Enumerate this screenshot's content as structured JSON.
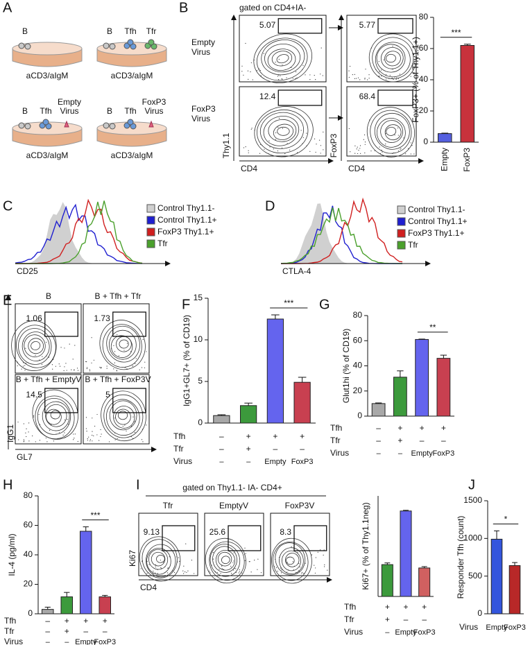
{
  "panel_letters": [
    "A",
    "B",
    "C",
    "D",
    "E",
    "F",
    "G",
    "H",
    "I",
    "J"
  ],
  "schematic": {
    "dishes": [
      {
        "label": "aCD3/aIgM",
        "cells": [
          [
            "B"
          ]
        ]
      },
      {
        "label": "aCD3/aIgM",
        "cells": [
          [
            "B"
          ],
          [
            "Tfh"
          ],
          [
            "Tfr"
          ]
        ]
      },
      {
        "label": "aCD3/aIgM",
        "cells": [
          [
            "B"
          ],
          [
            "Tfh"
          ],
          [
            "Empty",
            "Virus"
          ]
        ]
      },
      {
        "label": "aCD3/aIgM",
        "cells": [
          [
            "B"
          ],
          [
            "Tfh"
          ],
          [
            "FoxP3",
            "Virus"
          ]
        ]
      }
    ]
  },
  "flow_b": {
    "title": "gated on CD4+IA-",
    "rows": [
      {
        "label": [
          "Empty",
          "Virus"
        ],
        "gates": [
          5.07,
          5.77
        ]
      },
      {
        "label": [
          "FoxP3",
          "Virus"
        ],
        "gates": [
          12.4,
          68.4
        ]
      }
    ],
    "x_labels": [
      "CD4",
      "CD4"
    ],
    "y_labels": [
      "Thy1.1",
      "FoxP3"
    ]
  },
  "hist_c": {
    "x_label": "CD25",
    "legend": [
      {
        "name": "Control Thy1.1-",
        "color": "#d0d0d0"
      },
      {
        "name": "Control Thy1.1+",
        "color": "#1f1fd0"
      },
      {
        "name": "FoxP3 Thy1.1+",
        "color": "#d01f1f"
      },
      {
        "name": "Tfr",
        "color": "#4aa02c"
      }
    ]
  },
  "hist_d": {
    "x_label": "CTLA-4",
    "legend": [
      {
        "name": "Control Thy1.1-",
        "color": "#d0d0d0"
      },
      {
        "name": "Control Thy1.1+",
        "color": "#1f1fd0"
      },
      {
        "name": "FoxP3 Thy1.1+",
        "color": "#d01f1f"
      },
      {
        "name": "Tfr",
        "color": "#4aa02c"
      }
    ]
  },
  "flow_e": {
    "plots": [
      {
        "title": "B",
        "gate": 1.06
      },
      {
        "title": "B + Tfh + Tfr",
        "gate": 1.73
      },
      {
        "title": "B + Tfh + EmptyV",
        "gate": 14.5
      },
      {
        "title": "B + Tfh + FoxP3V",
        "gate": 5
      }
    ],
    "x_label": "GL7",
    "y_label": "IgG1"
  },
  "flow_i": {
    "title": "gated on Thy1.1- IA- CD4+",
    "plots": [
      {
        "title": "Tfr",
        "gate": 9.13
      },
      {
        "title": "EmptyV",
        "gate": 25.6
      },
      {
        "title": "FoxP3V",
        "gate": 8.3
      }
    ],
    "x_label": "CD4",
    "y_label": "Ki67"
  },
  "chart_data": [
    {
      "type": "bar",
      "y_label": "FoxP3+ (% of Thy1.1+)",
      "categories": [
        "Empty",
        "FoxP3"
      ],
      "values": [
        5.5,
        62
      ],
      "errors": [
        0.3,
        0.8
      ],
      "colors": [
        "#5560e0",
        "#c8323c"
      ],
      "ylim": [
        0,
        80
      ],
      "yticks": [
        0,
        20,
        40,
        60,
        80
      ],
      "significance": "***"
    },
    {
      "type": "bar",
      "y_label": "IgG1+GL7+ (% of CD19)",
      "condition_rows": [
        {
          "name": "Tfh",
          "labels": [
            "–",
            "+",
            "+",
            "+"
          ]
        },
        {
          "name": "Tfr",
          "labels": [
            "–",
            "+",
            "–",
            "–"
          ]
        }
      ],
      "category_row_name": "Virus",
      "categories": [
        "–",
        "–",
        "Empty",
        "FoxP3"
      ],
      "values": [
        0.9,
        2.1,
        12.5,
        4.9
      ],
      "errors": [
        0.1,
        0.3,
        0.5,
        0.6
      ],
      "colors": [
        "#a8a8a8",
        "#3c9a3c",
        "#6464ee",
        "#c84050"
      ],
      "ylim": [
        0,
        15
      ],
      "yticks": [
        0,
        5,
        10,
        15
      ],
      "significance": "***"
    },
    {
      "type": "bar",
      "y_label": "Glut1hi (% of CD19)",
      "condition_rows": [
        {
          "name": "Tfh",
          "labels": [
            "–",
            "+",
            "+",
            "+"
          ]
        },
        {
          "name": "Tfr",
          "labels": [
            "–",
            "+",
            "–",
            "–"
          ]
        }
      ],
      "category_row_name": "Virus",
      "categories": [
        "–",
        "–",
        "Empty",
        "FoxP3"
      ],
      "values": [
        10,
        31,
        61,
        46
      ],
      "errors": [
        0.5,
        5,
        0.3,
        2.5
      ],
      "colors": [
        "#a8a8a8",
        "#3c9a3c",
        "#6464ee",
        "#c84050"
      ],
      "ylim": [
        0,
        80
      ],
      "yticks": [
        0,
        20,
        40,
        60,
        80
      ],
      "significance": "**"
    },
    {
      "type": "bar",
      "y_label": "IL-4 (pg/ml)",
      "condition_rows": [
        {
          "name": "Tfh",
          "labels": [
            "–",
            "+",
            "+",
            "+"
          ]
        },
        {
          "name": "Tfr",
          "labels": [
            "–",
            "+",
            "–",
            "–"
          ]
        }
      ],
      "category_row_name": "Virus",
      "categories": [
        "–",
        "–",
        "Empty",
        "FoxP3"
      ],
      "values": [
        3,
        11.5,
        56,
        11.5
      ],
      "errors": [
        1.5,
        3,
        3,
        1
      ],
      "colors": [
        "#a8a8a8",
        "#3c9a3c",
        "#6464ee",
        "#c84050"
      ],
      "ylim": [
        0,
        80
      ],
      "yticks": [
        0,
        20,
        40,
        60,
        80
      ],
      "significance": "***"
    },
    {
      "type": "bar",
      "y_label": "Ki67+ (% of Thy1.1neg)",
      "condition_rows": [
        {
          "name": "Tfh",
          "labels": [
            "+",
            "+",
            "+"
          ]
        },
        {
          "name": "Tfr",
          "labels": [
            "+",
            "–",
            "–"
          ]
        }
      ],
      "category_row_name": "Virus",
      "categories": [
        "–",
        "Empty",
        "FoxP3"
      ],
      "values": [
        9.5,
        25.5,
        8.5
      ],
      "errors": [
        0.5,
        0.2,
        0.4
      ],
      "colors": [
        "#3c9a3c",
        "#6464ee",
        "#d06060"
      ],
      "ylim": [
        0,
        30
      ]
    },
    {
      "type": "bar",
      "y_label": "Responder Tfh (count)",
      "category_row_name": "Virus",
      "categories": [
        "Empty",
        "FoxP3"
      ],
      "values": [
        990,
        640
      ],
      "errors": [
        110,
        40
      ],
      "colors": [
        "#3355dd",
        "#b82828"
      ],
      "ylim": [
        0,
        1500
      ],
      "yticks": [
        0,
        500,
        1000,
        1500
      ],
      "significance": "*"
    }
  ]
}
